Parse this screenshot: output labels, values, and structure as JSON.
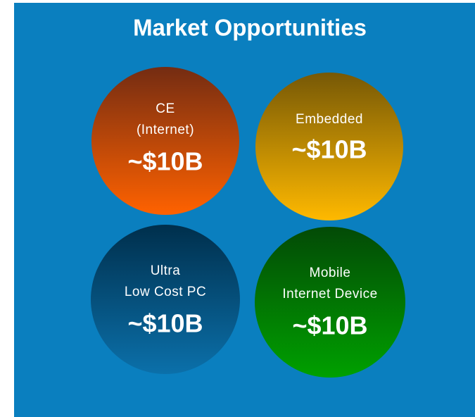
{
  "title": "Market Opportunities",
  "circles": [
    {
      "lines": [
        "CE",
        "(Internet)"
      ],
      "value": "~$10B"
    },
    {
      "lines": [
        "Embedded"
      ],
      "value": "~$10B"
    },
    {
      "lines": [
        "Ultra",
        "Low Cost PC"
      ],
      "value": "~$10B"
    },
    {
      "lines": [
        "Mobile",
        "Internet Device"
      ],
      "value": "~$10B"
    }
  ]
}
